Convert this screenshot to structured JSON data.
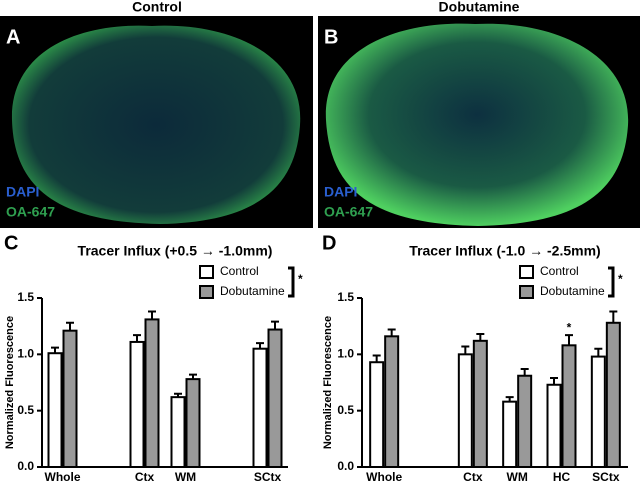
{
  "images": [
    {
      "letter": "A",
      "title": "Control",
      "labels": [
        "DAPI",
        "OA-647"
      ]
    },
    {
      "letter": "B",
      "title": "Dobutamine",
      "labels": [
        "DAPI",
        "OA-647"
      ]
    }
  ],
  "chart_data": [
    {
      "type": "bar",
      "letter": "C",
      "title": "Tracer Influx (+0.5 → -1.0mm)",
      "y_label": "Normalized Fluorescence",
      "categories": [
        "Whole",
        null,
        "Ctx",
        "WM",
        null,
        "SCtx"
      ],
      "series": [
        {
          "name": "Control",
          "color": "#ffffff",
          "values": [
            1.01,
            null,
            1.11,
            0.62,
            null,
            1.05
          ],
          "errors": [
            0.05,
            null,
            0.06,
            0.03,
            null,
            0.05
          ]
        },
        {
          "name": "Dobutamine",
          "color": "#999999",
          "values": [
            1.21,
            null,
            1.31,
            0.78,
            null,
            1.22
          ],
          "errors": [
            0.07,
            null,
            0.07,
            0.04,
            null,
            0.07
          ]
        }
      ],
      "significance_label": "*",
      "ylim": [
        0,
        1.5
      ],
      "yticks": [
        {
          "value": 0,
          "label": "0.0"
        },
        {
          "value": 0.5,
          "label": "0.5"
        },
        {
          "value": 1,
          "label": "1.0"
        },
        {
          "value": 1.5,
          "label": "1.5"
        }
      ]
    },
    {
      "type": "bar",
      "letter": "D",
      "title": "Tracer Influx (-1.0 → -2.5mm)",
      "y_label": "Normalized Fluorescence",
      "categories": [
        "Whole",
        null,
        "Ctx",
        "WM",
        "HC",
        "SCtx"
      ],
      "series": [
        {
          "name": "Control",
          "color": "#ffffff",
          "values": [
            0.93,
            null,
            1.0,
            0.58,
            0.73,
            0.98
          ],
          "errors": [
            0.06,
            null,
            0.07,
            0.04,
            0.06,
            0.07
          ]
        },
        {
          "name": "Dobutamine",
          "color": "#999999",
          "values": [
            1.16,
            null,
            1.12,
            0.81,
            1.08,
            1.28
          ],
          "errors": [
            0.06,
            null,
            0.06,
            0.06,
            0.09,
            0.1
          ]
        }
      ],
      "significance_label": "*",
      "annotations": [
        {
          "text": "*",
          "category": "HC",
          "series": "Dobutamine"
        }
      ],
      "ylim": [
        0,
        1.5
      ],
      "yticks": [
        {
          "value": 0,
          "label": "0.0"
        },
        {
          "value": 0.5,
          "label": "0.5"
        },
        {
          "value": 1,
          "label": "1.0"
        },
        {
          "value": 1.5,
          "label": "1.5"
        }
      ]
    }
  ]
}
